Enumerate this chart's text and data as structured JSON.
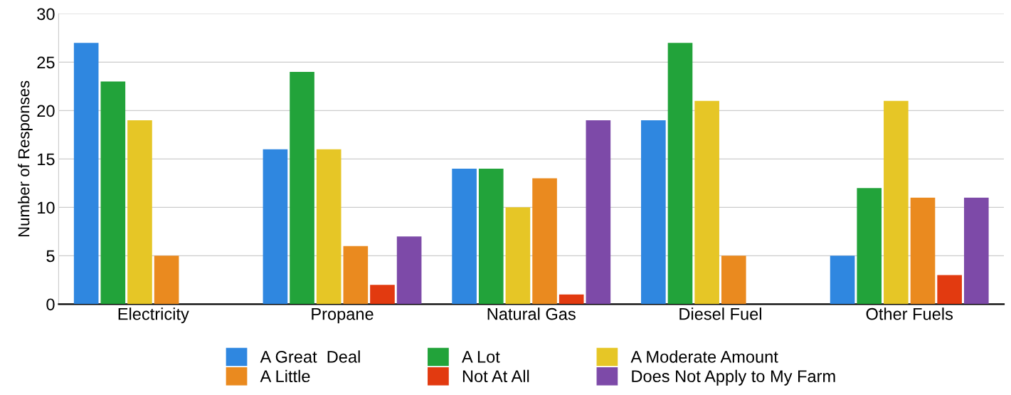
{
  "chart_data": {
    "type": "bar",
    "ylabel": "Number of Responses",
    "categories": [
      "Electricity",
      "Propane",
      "Natural Gas",
      "Diesel Fuel",
      "Other Fuels"
    ],
    "series": [
      {
        "name": "A Great  Deal",
        "color": "#2f87e0",
        "values": [
          27,
          16,
          14,
          19,
          5
        ]
      },
      {
        "name": "A Lot",
        "color": "#22a33a",
        "values": [
          23,
          24,
          14,
          27,
          12
        ]
      },
      {
        "name": "A Moderate Amount",
        "color": "#e6c626",
        "values": [
          19,
          16,
          10,
          21,
          21
        ]
      },
      {
        "name": "A Little",
        "color": "#ea8a1f",
        "values": [
          5,
          6,
          13,
          5,
          11
        ]
      },
      {
        "name": "Not At All",
        "color": "#e23a10",
        "values": [
          0,
          2,
          1,
          0,
          3
        ]
      },
      {
        "name": "Does Not Apply to My Farm",
        "color": "#7d4aa8",
        "values": [
          0,
          7,
          19,
          0,
          11
        ]
      }
    ],
    "ylim": [
      0,
      30
    ],
    "yticks": [
      0,
      5,
      10,
      15,
      20,
      25,
      30
    ],
    "grid": "y",
    "legend": "bottom"
  }
}
